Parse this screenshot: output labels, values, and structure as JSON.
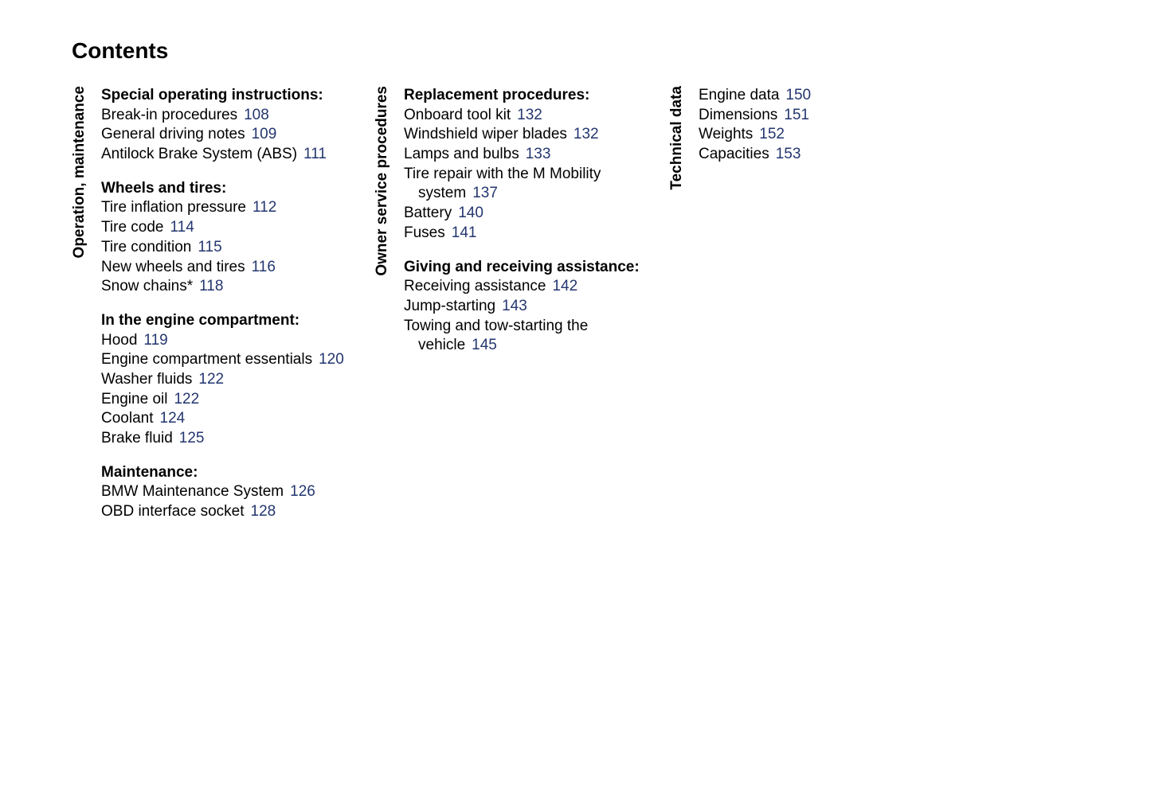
{
  "title": "Contents",
  "link_color": "#23366f",
  "text_color": "#000000",
  "font_family": "Arial, Helvetica, sans-serif",
  "columns": [
    {
      "section_label": "Operation, maintenance",
      "subsections": [
        {
          "title": "Special operating instructions:",
          "entries": [
            {
              "label": "Break-in procedures",
              "page": "108"
            },
            {
              "label": "General driving notes",
              "page": "109"
            },
            {
              "label": "Antilock Brake System (ABS)",
              "page": "111",
              "hanging": true
            }
          ]
        },
        {
          "title": "Wheels and tires:",
          "entries": [
            {
              "label": "Tire inflation pressure",
              "page": "112"
            },
            {
              "label": "Tire code",
              "page": "114"
            },
            {
              "label": "Tire condition",
              "page": "115"
            },
            {
              "label": "New wheels and tires",
              "page": "116"
            },
            {
              "label": "Snow chains*",
              "page": "118"
            }
          ]
        },
        {
          "title": "In the engine compartment:",
          "entries": [
            {
              "label": "Hood",
              "page": "119"
            },
            {
              "label": "Engine compartment essentials",
              "page": "120",
              "hanging": true
            },
            {
              "label": "Washer fluids",
              "page": "122"
            },
            {
              "label": "Engine oil",
              "page": "122"
            },
            {
              "label": "Coolant",
              "page": "124"
            },
            {
              "label": "Brake fluid",
              "page": "125"
            }
          ]
        },
        {
          "title": "Maintenance:",
          "entries": [
            {
              "label": "BMW Maintenance System",
              "page": "126"
            },
            {
              "label": "OBD interface socket",
              "page": "128"
            }
          ]
        }
      ]
    },
    {
      "section_label": "Owner service procedures",
      "subsections": [
        {
          "title": "Replacement procedures:",
          "entries": [
            {
              "label": "Onboard tool kit",
              "page": "132"
            },
            {
              "label": "Windshield wiper blades",
              "page": "132"
            },
            {
              "label": "Lamps and bulbs",
              "page": "133"
            },
            {
              "label": "Tire repair with the M Mobility system",
              "page": "137",
              "hanging": true
            },
            {
              "label": "Battery",
              "page": "140"
            },
            {
              "label": "Fuses",
              "page": "141"
            }
          ]
        },
        {
          "title": "Giving and receiving assistance:",
          "entries": [
            {
              "label": "Receiving assistance",
              "page": "142"
            },
            {
              "label": "Jump-starting",
              "page": "143"
            },
            {
              "label": "Towing and tow-starting the vehicle",
              "page": "145",
              "hanging": true
            }
          ]
        }
      ]
    },
    {
      "section_label": "Technical data",
      "subsections": [
        {
          "title": "",
          "entries": [
            {
              "label": "Engine data",
              "page": "150"
            },
            {
              "label": "Dimensions",
              "page": "151"
            },
            {
              "label": "Weights",
              "page": "152"
            },
            {
              "label": "Capacities",
              "page": "153"
            }
          ]
        }
      ]
    }
  ]
}
